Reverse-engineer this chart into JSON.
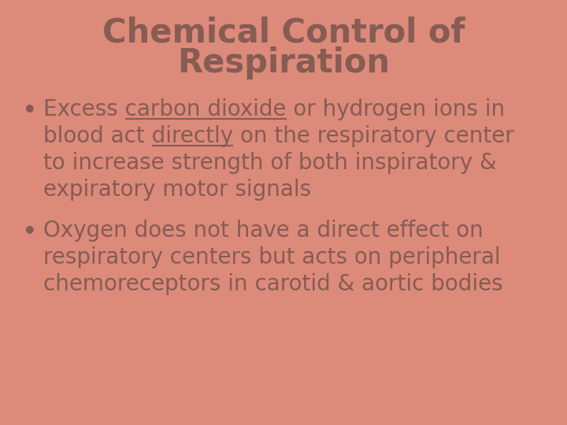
{
  "title_line1": "Chemical Control of",
  "title_line2": "Respiration",
  "title_fontsize": 30,
  "title_color": "#0a0a0a",
  "bullet1_lines": [
    "Excess carbon dioxide or hydrogen ions in",
    "blood act directly on the respiratory center",
    "to increase strength of both inspiratory &",
    "expiratory motor signals"
  ],
  "bullet2_lines": [
    "Oxygen does not have a direct effect on",
    "respiratory centers but acts on peripheral",
    "chemoreceptors in carotid & aortic bodies"
  ],
  "bullet_fontsize": 20,
  "bullet_color": "#0a0a0a",
  "bg_light": "#f0c0b0",
  "bg_dark": "#c07060",
  "underline1_word": "carbon dioxide",
  "underline1_prefix": "Excess ",
  "underline2_word": "directly",
  "underline2_prefix": "blood act "
}
